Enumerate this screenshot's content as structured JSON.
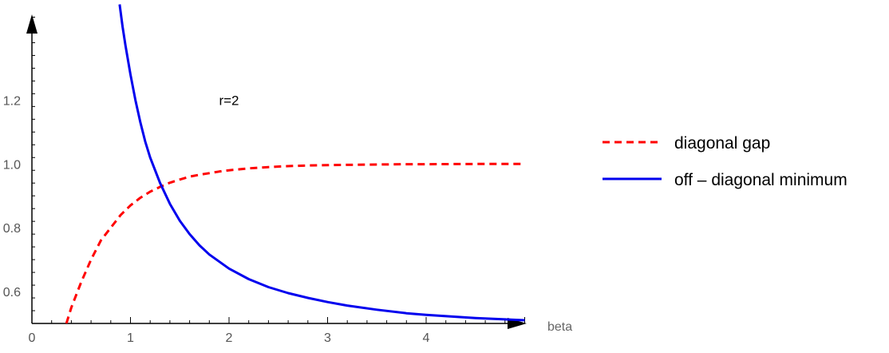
{
  "chart_data": {
    "type": "line",
    "title": "",
    "xlabel": "beta",
    "ylabel": "",
    "xlim": [
      0,
      5.05
    ],
    "ylim": [
      0.5,
      1.5
    ],
    "x_ticks": [
      0,
      1,
      2,
      3,
      4
    ],
    "y_ticks": [
      0.6,
      0.8,
      1.0,
      1.2
    ],
    "x_tick_labels": [
      "0",
      "1",
      "2",
      "3",
      "4"
    ],
    "y_tick_labels": [
      "0.6",
      "0.8",
      "1.0",
      "1.2"
    ],
    "annotation": {
      "text": "r=2",
      "x": 2.0,
      "y": 1.2
    },
    "grid": false,
    "legend_position": "right",
    "series": [
      {
        "name": "diagonal gap",
        "color": "#ff0000",
        "style": "dashed",
        "x": [
          0.35,
          0.4,
          0.5,
          0.6,
          0.7,
          0.8,
          0.9,
          1.0,
          1.1,
          1.2,
          1.3,
          1.4,
          1.5,
          1.6,
          1.7,
          1.8,
          1.9,
          2.0,
          2.2,
          2.4,
          2.6,
          2.8,
          3.0,
          3.2,
          3.5,
          3.8,
          4.0,
          4.5,
          5.0
        ],
        "y": [
          0.5,
          0.55,
          0.63,
          0.7,
          0.76,
          0.8,
          0.84,
          0.87,
          0.894,
          0.913,
          0.928,
          0.941,
          0.951,
          0.96,
          0.966,
          0.971,
          0.976,
          0.98,
          0.986,
          0.99,
          0.993,
          0.995,
          0.996,
          0.997,
          0.998,
          0.999,
          0.999,
          1.0,
          1.0
        ]
      },
      {
        "name": "off – diagonal minimum",
        "color": "#0000ee",
        "style": "solid",
        "x": [
          0.89,
          0.92,
          0.95,
          1.0,
          1.05,
          1.1,
          1.15,
          1.2,
          1.3,
          1.4,
          1.5,
          1.6,
          1.7,
          1.8,
          2.0,
          2.2,
          2.4,
          2.6,
          2.8,
          3.0,
          3.2,
          3.5,
          3.8,
          4.0,
          4.5,
          5.0
        ],
        "y": [
          1.5,
          1.43,
          1.37,
          1.28,
          1.2,
          1.13,
          1.07,
          1.02,
          0.94,
          0.875,
          0.822,
          0.78,
          0.745,
          0.716,
          0.672,
          0.639,
          0.614,
          0.595,
          0.58,
          0.567,
          0.556,
          0.543,
          0.532,
          0.527,
          0.517,
          0.51
        ]
      }
    ]
  }
}
